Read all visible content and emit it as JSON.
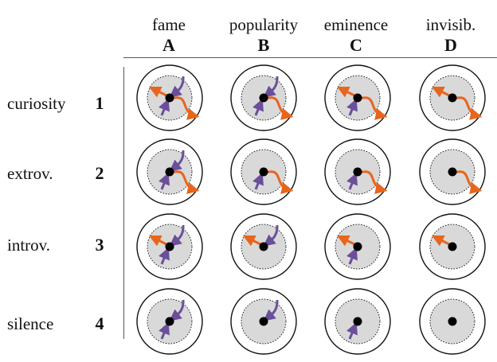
{
  "columns": [
    {
      "name": "fame",
      "letter": "A"
    },
    {
      "name": "popularity",
      "letter": "B"
    },
    {
      "name": "eminence",
      "letter": "C"
    },
    {
      "name": "invisib.",
      "letter": "D"
    }
  ],
  "rows": [
    {
      "name": "curiosity",
      "number": "1"
    },
    {
      "name": "extrov.",
      "number": "2"
    },
    {
      "name": "introv.",
      "number": "3"
    },
    {
      "name": "silence",
      "number": "4"
    }
  ],
  "colors": {
    "outer_fill": "#ffffff",
    "inner_fill": "#d9d9d9",
    "stroke": "#111111",
    "dot": "#000000",
    "purple": "#6b4f9a",
    "orange": "#e8651c"
  },
  "cells": [
    [
      {
        "row": 1,
        "col": "A",
        "inward_top": true,
        "inward_bottom": true,
        "outward_left": true,
        "outward_right": true
      },
      {
        "row": 1,
        "col": "B",
        "inward_top": true,
        "inward_bottom": true,
        "outward_left": false,
        "outward_right": true
      },
      {
        "row": 1,
        "col": "C",
        "inward_top": false,
        "inward_bottom": true,
        "outward_left": true,
        "outward_right": true
      },
      {
        "row": 1,
        "col": "D",
        "inward_top": false,
        "inward_bottom": false,
        "outward_left": true,
        "outward_right": true
      }
    ],
    [
      {
        "row": 2,
        "col": "A",
        "inward_top": true,
        "inward_bottom": true,
        "outward_left": false,
        "outward_right": true
      },
      {
        "row": 2,
        "col": "B",
        "inward_top": false,
        "inward_bottom": true,
        "outward_left": false,
        "outward_right": true
      },
      {
        "row": 2,
        "col": "C",
        "inward_top": false,
        "inward_bottom": true,
        "outward_left": false,
        "outward_right": true
      },
      {
        "row": 2,
        "col": "D",
        "inward_top": false,
        "inward_bottom": false,
        "outward_left": false,
        "outward_right": true
      }
    ],
    [
      {
        "row": 3,
        "col": "A",
        "inward_top": true,
        "inward_bottom": true,
        "outward_left": true,
        "outward_right": false
      },
      {
        "row": 3,
        "col": "B",
        "inward_top": true,
        "inward_bottom": false,
        "outward_left": true,
        "outward_right": false
      },
      {
        "row": 3,
        "col": "C",
        "inward_top": false,
        "inward_bottom": true,
        "outward_left": true,
        "outward_right": false
      },
      {
        "row": 3,
        "col": "D",
        "inward_top": false,
        "inward_bottom": false,
        "outward_left": true,
        "outward_right": false
      }
    ],
    [
      {
        "row": 4,
        "col": "A",
        "inward_top": true,
        "inward_bottom": true,
        "outward_left": false,
        "outward_right": false
      },
      {
        "row": 4,
        "col": "B",
        "inward_top": true,
        "inward_bottom": false,
        "outward_left": false,
        "outward_right": false
      },
      {
        "row": 4,
        "col": "C",
        "inward_top": false,
        "inward_bottom": true,
        "outward_left": false,
        "outward_right": false
      },
      {
        "row": 4,
        "col": "D",
        "inward_top": false,
        "inward_bottom": false,
        "outward_left": false,
        "outward_right": false
      }
    ]
  ]
}
